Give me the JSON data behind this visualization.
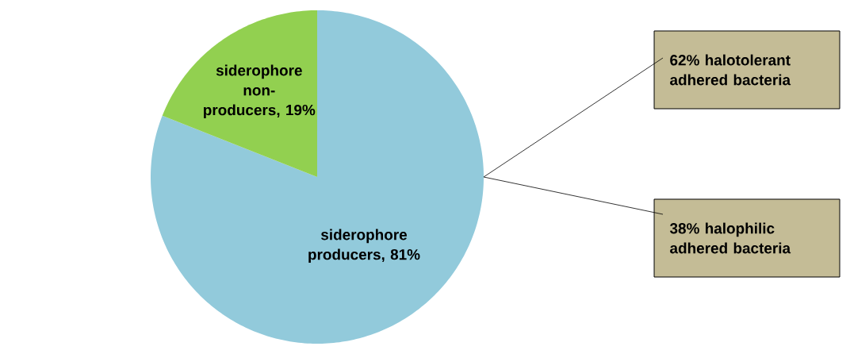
{
  "chart_data": {
    "type": "pie",
    "categories": [
      "siderophore producers, 81%",
      "siderophore non-producers, 19%"
    ],
    "values": [
      81,
      19
    ],
    "colors": [
      "#92cadb",
      "#92d050"
    ],
    "annotations": [
      "62% halotolerant adhered bacteria",
      "38% halophilic adhered bacteria"
    ]
  }
}
